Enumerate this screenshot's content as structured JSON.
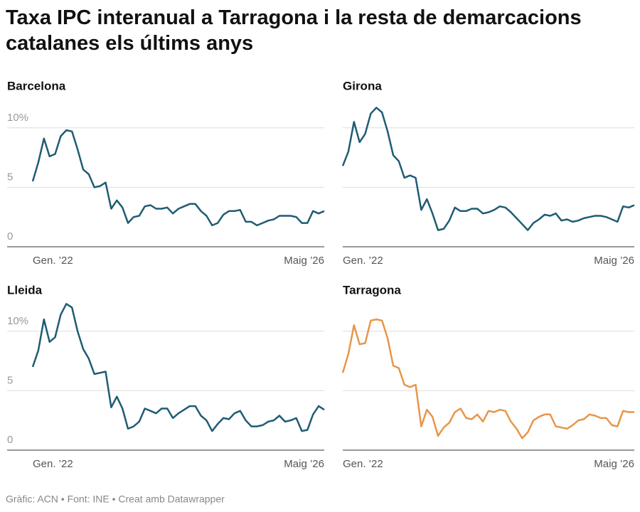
{
  "title": "Taxa IPC interanual a Tarragona i la resta de demarcacions catalanes els últims anys",
  "footer": "Gràfic: ACN • Font: INE • Creat amb Datawrapper",
  "chart_data": [
    {
      "type": "line",
      "title": "Barcelona",
      "categories": [
        "Gen. ’22",
        null,
        null,
        null,
        null,
        null,
        null,
        null,
        null,
        null,
        null,
        null,
        null,
        null,
        null,
        null,
        null,
        null,
        null,
        null,
        null,
        null,
        null,
        null,
        null,
        null,
        null,
        null,
        null,
        null,
        null,
        null,
        null,
        null,
        null,
        null,
        null,
        null,
        null,
        null,
        null,
        null,
        null,
        null,
        null,
        null,
        null,
        null,
        null,
        null,
        null,
        null,
        "Maig ’26"
      ],
      "values": [
        5.5,
        7.1,
        9.1,
        7.6,
        7.8,
        9.3,
        9.8,
        9.7,
        8.2,
        6.5,
        6.1,
        5.0,
        5.1,
        5.4,
        3.2,
        3.9,
        3.3,
        2.0,
        2.5,
        2.6,
        3.4,
        3.5,
        3.2,
        3.2,
        3.3,
        2.8,
        3.2,
        3.4,
        3.6,
        3.6,
        3.0,
        2.6,
        1.8,
        2.0,
        2.7,
        3.0,
        3.0,
        3.1,
        2.1,
        2.1,
        1.8,
        2.0,
        2.2,
        2.3,
        2.6,
        2.6,
        2.6,
        2.5,
        2.0,
        2.0,
        3.0,
        2.8,
        3.0
      ],
      "color": "#1f5c74",
      "ylim": [
        0,
        12.5
      ],
      "yticks": [
        0,
        5,
        {
          "value": 10,
          "label": "10%"
        }
      ],
      "grid": true
    },
    {
      "type": "line",
      "title": "Girona",
      "categories": [
        "Gen. ’22",
        null,
        null,
        null,
        null,
        null,
        null,
        null,
        null,
        null,
        null,
        null,
        null,
        null,
        null,
        null,
        null,
        null,
        null,
        null,
        null,
        null,
        null,
        null,
        null,
        null,
        null,
        null,
        null,
        null,
        null,
        null,
        null,
        null,
        null,
        null,
        null,
        null,
        null,
        null,
        null,
        null,
        null,
        null,
        null,
        null,
        null,
        null,
        null,
        null,
        null,
        null,
        "Maig ’26"
      ],
      "values": [
        6.8,
        8.0,
        10.5,
        8.8,
        9.5,
        11.2,
        11.7,
        11.3,
        9.7,
        7.7,
        7.2,
        5.8,
        6.0,
        5.8,
        3.1,
        4.0,
        2.8,
        1.4,
        1.5,
        2.2,
        3.3,
        3.0,
        3.0,
        3.2,
        3.2,
        2.8,
        2.9,
        3.1,
        3.4,
        3.3,
        2.9,
        2.4,
        1.9,
        1.4,
        2.0,
        2.3,
        2.7,
        2.6,
        2.8,
        2.2,
        2.3,
        2.1,
        2.2,
        2.4,
        2.5,
        2.6,
        2.6,
        2.5,
        2.3,
        2.1,
        3.4,
        3.3,
        3.5
      ],
      "color": "#1f5c74",
      "ylim": [
        0,
        12.5
      ],
      "yticks": [
        0,
        5,
        10
      ],
      "grid": true
    },
    {
      "type": "line",
      "title": "Lleida",
      "categories": [
        "Gen. ’22",
        null,
        null,
        null,
        null,
        null,
        null,
        null,
        null,
        null,
        null,
        null,
        null,
        null,
        null,
        null,
        null,
        null,
        null,
        null,
        null,
        null,
        null,
        null,
        null,
        null,
        null,
        null,
        null,
        null,
        null,
        null,
        null,
        null,
        null,
        null,
        null,
        null,
        null,
        null,
        null,
        null,
        null,
        null,
        null,
        null,
        null,
        null,
        null,
        null,
        null,
        null,
        "Maig ’26"
      ],
      "values": [
        7.0,
        8.4,
        11.0,
        9.1,
        9.5,
        11.4,
        12.3,
        12.0,
        10.0,
        8.5,
        7.7,
        6.4,
        6.5,
        6.6,
        3.6,
        4.5,
        3.5,
        1.8,
        2.0,
        2.4,
        3.5,
        3.3,
        3.1,
        3.5,
        3.5,
        2.7,
        3.1,
        3.4,
        3.7,
        3.7,
        2.9,
        2.5,
        1.6,
        2.2,
        2.7,
        2.6,
        3.1,
        3.3,
        2.5,
        2.0,
        2.0,
        2.1,
        2.4,
        2.5,
        2.9,
        2.4,
        2.5,
        2.7,
        1.6,
        1.7,
        3.0,
        3.7,
        3.4
      ],
      "color": "#1f5c74",
      "ylim": [
        0,
        12.5
      ],
      "yticks": [
        0,
        5,
        {
          "value": 10,
          "label": "10%"
        }
      ],
      "grid": true
    },
    {
      "type": "line",
      "title": "Tarragona",
      "categories": [
        "Gen. ’22",
        null,
        null,
        null,
        null,
        null,
        null,
        null,
        null,
        null,
        null,
        null,
        null,
        null,
        null,
        null,
        null,
        null,
        null,
        null,
        null,
        null,
        null,
        null,
        null,
        null,
        null,
        null,
        null,
        null,
        null,
        null,
        null,
        null,
        null,
        null,
        null,
        null,
        null,
        null,
        null,
        null,
        null,
        null,
        null,
        null,
        null,
        null,
        null,
        null,
        null,
        null,
        "Maig ’26"
      ],
      "values": [
        6.5,
        8.1,
        10.5,
        8.9,
        9.0,
        10.9,
        11.0,
        10.9,
        9.4,
        7.1,
        6.9,
        5.5,
        5.3,
        5.5,
        2.0,
        3.4,
        2.8,
        1.2,
        1.9,
        2.3,
        3.2,
        3.5,
        2.7,
        2.6,
        3.0,
        2.4,
        3.3,
        3.2,
        3.4,
        3.3,
        2.4,
        1.8,
        1.0,
        1.5,
        2.5,
        2.8,
        3.0,
        3.0,
        2.0,
        1.9,
        1.8,
        2.1,
        2.5,
        2.6,
        3.0,
        2.9,
        2.7,
        2.7,
        2.1,
        2.0,
        3.3,
        3.2,
        3.2
      ],
      "color": "#e8954a",
      "ylim": [
        0,
        12.5
      ],
      "yticks": [
        0,
        5,
        10
      ],
      "grid": true
    }
  ]
}
